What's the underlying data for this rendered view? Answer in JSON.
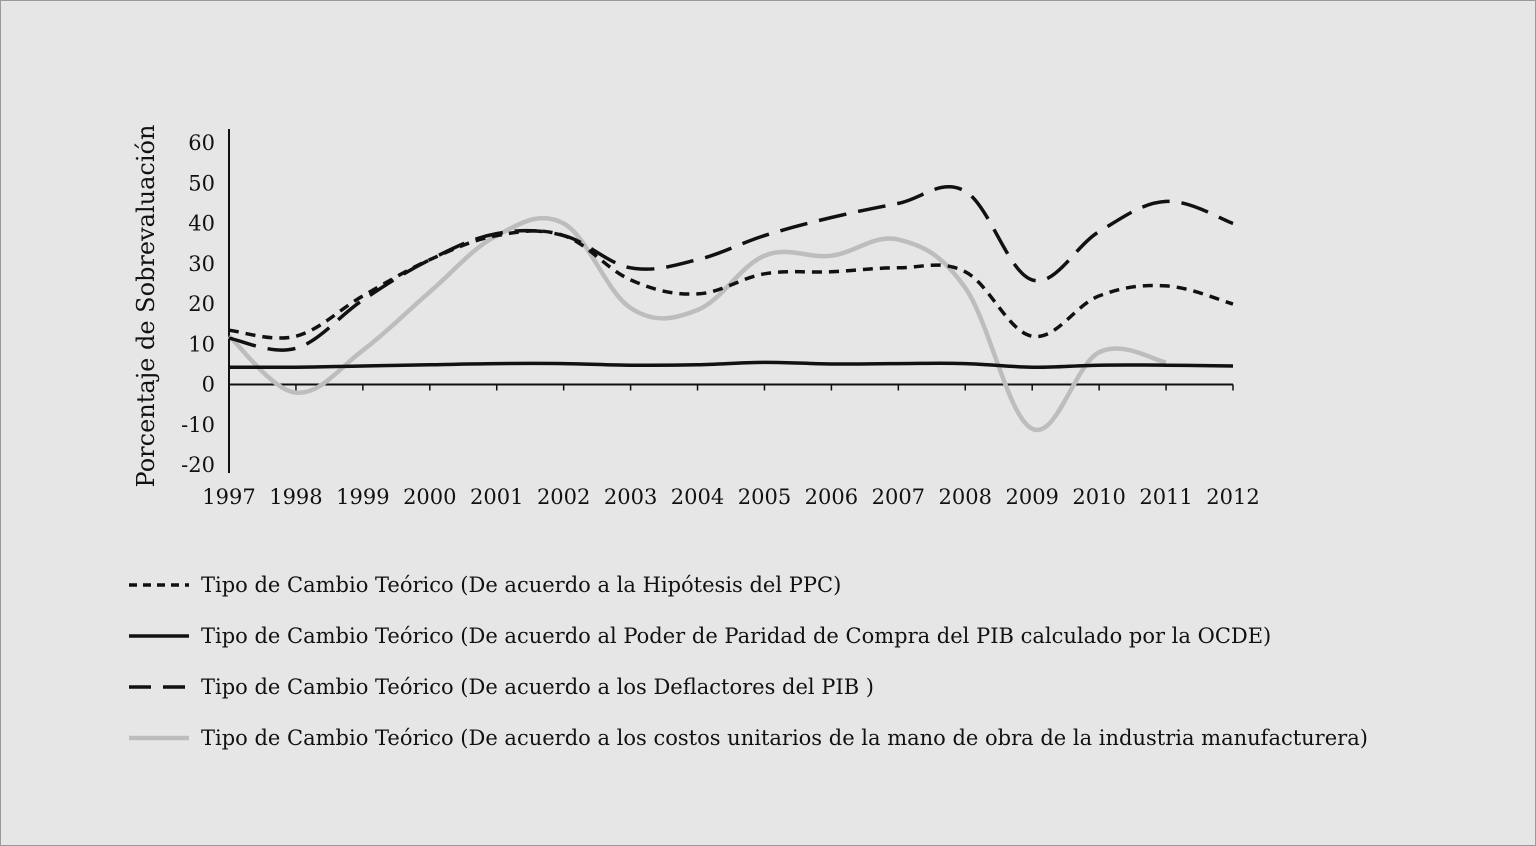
{
  "colors": {
    "background": "#e6e6e6",
    "axis": "#111111",
    "ppc": "#111111",
    "ocde": "#111111",
    "deflactores": "#111111",
    "costos": "#bdbdbd"
  },
  "chart_data": {
    "type": "line",
    "title": "",
    "xlabel": "",
    "ylabel": "Porcentaje de Sobrevaluación",
    "ylim": [
      -20,
      60
    ],
    "yticks": [
      60,
      50,
      40,
      30,
      20,
      10,
      0,
      -10,
      -20
    ],
    "x": [
      "1997",
      "1998",
      "1999",
      "2000",
      "2001",
      "2002",
      "2003",
      "2004",
      "2005",
      "2006",
      "2007",
      "2008",
      "2009",
      "2010",
      "2011",
      "2012"
    ],
    "grid": false,
    "legend": "bottom",
    "series": [
      {
        "name": "Tipo de Cambio Teórico (De acuerdo a la Hipótesis del PPC)",
        "style": "dashed-short",
        "values": [
          13.5,
          12,
          22,
          31,
          37,
          37,
          26,
          22.5,
          27.5,
          28,
          29,
          28,
          12,
          22,
          24.5,
          20
        ]
      },
      {
        "name": "Tipo de Cambio Teórico (De acuerdo al Poder de Paridad de Compra del PIB calculado por la OCDE)",
        "style": "solid",
        "values": [
          4.3,
          4.3,
          4.6,
          4.9,
          5.2,
          5.2,
          4.8,
          4.9,
          5.5,
          5.1,
          5.2,
          5.2,
          4.3,
          4.8,
          4.8,
          4.6
        ]
      },
      {
        "name": "Tipo de Cambio Teórico (De acuerdo a los Deflactores del PIB )",
        "style": "dashed-long",
        "values": [
          11.5,
          9,
          21,
          31,
          37.5,
          37,
          29,
          31,
          37,
          41.5,
          45,
          48,
          26,
          38,
          45.5,
          40
        ]
      },
      {
        "name": "Tipo de Cambio Teórico (De acuerdo a los costos unitarios de la mano de obra de la industria manufacturera)",
        "style": "solid-gray",
        "values": [
          12,
          -2,
          8.5,
          23,
          37,
          40,
          19,
          18.5,
          32,
          32,
          36,
          24,
          -11,
          8,
          5.5,
          null
        ]
      }
    ]
  }
}
